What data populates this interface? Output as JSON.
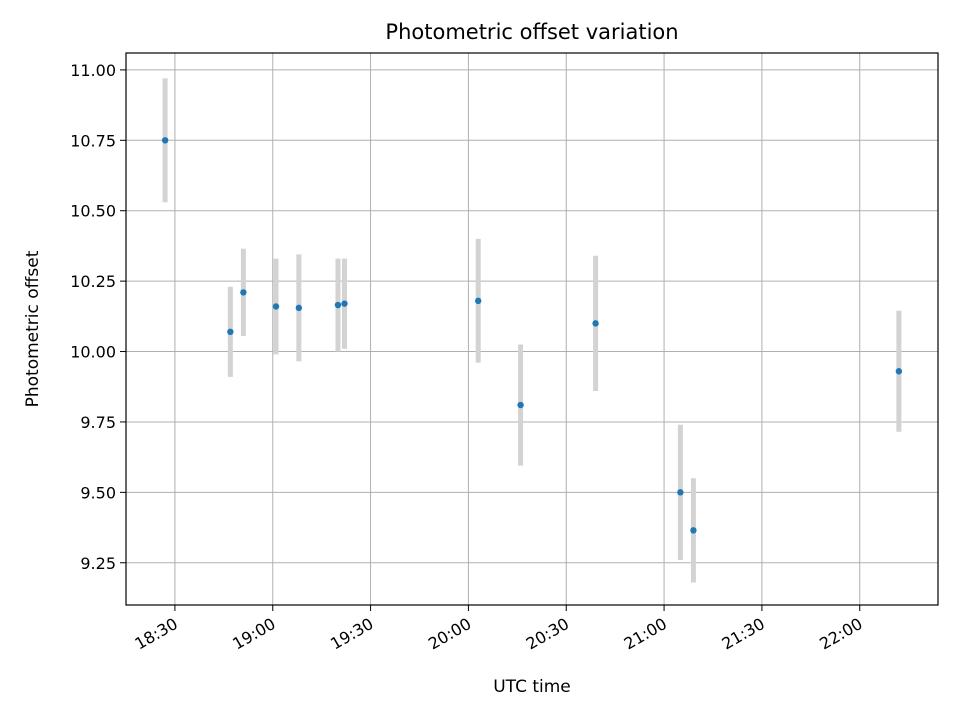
{
  "chart_data": {
    "type": "scatter",
    "title": "Photometric offset variation",
    "xlabel": "UTC time",
    "ylabel": "Photometric offset",
    "x_ticks": [
      "18:30",
      "19:00",
      "19:30",
      "20:00",
      "20:30",
      "21:00",
      "21:30",
      "22:00"
    ],
    "y_ticks": [
      "9.25",
      "9.50",
      "9.75",
      "10.00",
      "10.25",
      "10.50",
      "10.75",
      "11.00"
    ],
    "xlim": [
      "18:15",
      "22:24"
    ],
    "ylim": [
      9.1,
      11.06
    ],
    "grid": true,
    "colors": {
      "point": "#1f77b4",
      "errorbar": "#d3d3d3",
      "grid": "#b0b0b0"
    },
    "points": [
      {
        "x": "18:27",
        "y": 10.75,
        "err": 0.22
      },
      {
        "x": "18:47",
        "y": 10.07,
        "err": 0.16
      },
      {
        "x": "18:51",
        "y": 10.21,
        "err": 0.155
      },
      {
        "x": "19:01",
        "y": 10.16,
        "err": 0.17
      },
      {
        "x": "19:08",
        "y": 10.155,
        "err": 0.19
      },
      {
        "x": "19:20",
        "y": 10.165,
        "err": 0.165
      },
      {
        "x": "19:22",
        "y": 10.17,
        "err": 0.16
      },
      {
        "x": "20:03",
        "y": 10.18,
        "err": 0.22
      },
      {
        "x": "20:16",
        "y": 9.81,
        "err": 0.215
      },
      {
        "x": "20:39",
        "y": 10.1,
        "err": 0.24
      },
      {
        "x": "21:05",
        "y": 9.5,
        "err": 0.24
      },
      {
        "x": "21:09",
        "y": 9.365,
        "err": 0.185
      },
      {
        "x": "22:12",
        "y": 9.93,
        "err": 0.215
      }
    ]
  }
}
